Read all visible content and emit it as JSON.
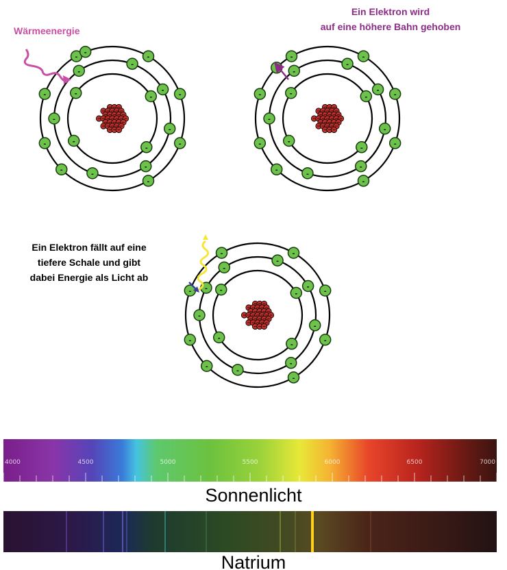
{
  "labels": {
    "heat_energy": "Wärmeenergie",
    "excited_line1": "Ein Elektron wird",
    "excited_line2": "auf eine höhere Bahn gehoben",
    "emission_line1": "Ein Elektron fällt auf eine",
    "emission_line2": "tiefere Schale und gibt",
    "emission_line3": "dabei Energie als Licht ab"
  },
  "electron_sign": "-",
  "spectrum": {
    "ticks": [
      "4000",
      "4500",
      "5000",
      "5500",
      "6000",
      "6500",
      "7000"
    ],
    "sunlight_caption": "Sonnenlicht",
    "sodium_caption": "Natrium"
  },
  "colors": {
    "heat_label": "#c84fa5",
    "excited_label": "#8b2c86",
    "electron_fill": "#6cc24a",
    "nucleus_fill": "#c0302a",
    "photon": "#f5e63a",
    "transition_arrow": "#3a3f9c",
    "sodium_line": "#ffd11a"
  }
}
